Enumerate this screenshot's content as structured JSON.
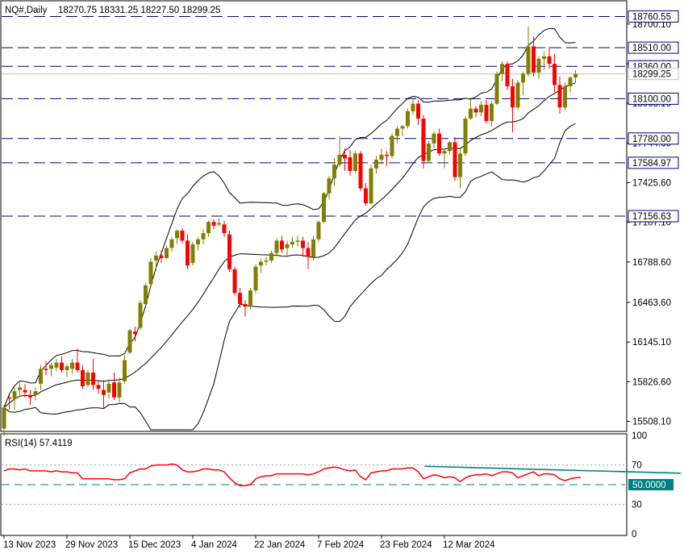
{
  "header": {
    "symbol": "NQ#,Daily",
    "ohlc": "18270.75 18331.25 18227.50 18299.25"
  },
  "rsi_header": {
    "label": "RSI(14) 57.4119"
  },
  "colors": {
    "bull": "#808000",
    "bear": "#ff0000",
    "hline": "#000080",
    "rsi": "#ff0000",
    "trend": "#008080",
    "bid": "#c0c0c0"
  },
  "chart_data": [
    {
      "type": "candlestick",
      "title": "NQ#,Daily",
      "price_axis_ticks": [
        "18700.10",
        "18381.60",
        "18063.10",
        "17744.60",
        "17425.60",
        "17107.10",
        "16788.60",
        "16463.60",
        "16145.10",
        "15826.60",
        "15508.10"
      ],
      "x_tick_labels": [
        "13 Nov 2023",
        "29 Nov 2023",
        "15 Dec 2023",
        "4 Jan 2024",
        "22 Jan 2024",
        "7 Feb 2024",
        "23 Feb 2024",
        "12 Mar 2024"
      ],
      "horizontal_levels": [
        "18760.55",
        "18510.00",
        "18360.00",
        "18100.00",
        "17780.00",
        "17584.97",
        "17156.63"
      ],
      "current_price": "18299.25",
      "ylim": [
        15440,
        18880
      ],
      "candles": [
        [
          15450,
          15640,
          15390,
          15620
        ],
        [
          15700,
          15720,
          15600,
          15690
        ],
        [
          15690,
          15780,
          15600,
          15750
        ],
        [
          15760,
          15820,
          15710,
          15780
        ],
        [
          15760,
          15810,
          15700,
          15740
        ],
        [
          15720,
          15760,
          15640,
          15700
        ],
        [
          15720,
          15780,
          15680,
          15750
        ],
        [
          15810,
          15960,
          15760,
          15930
        ],
        [
          15930,
          15990,
          15880,
          15920
        ],
        [
          15930,
          15980,
          15870,
          15960
        ],
        [
          15940,
          16010,
          15910,
          15980
        ],
        [
          15980,
          16030,
          15900,
          15920
        ],
        [
          15920,
          15970,
          15860,
          15950
        ],
        [
          15930,
          16010,
          15890,
          15980
        ],
        [
          15980,
          16090,
          15900,
          15920
        ],
        [
          15920,
          15960,
          15770,
          15790
        ],
        [
          15800,
          15920,
          15780,
          15900
        ],
        [
          15900,
          16010,
          15760,
          15800
        ],
        [
          15800,
          15830,
          15730,
          15770
        ],
        [
          15760,
          15840,
          15610,
          15720
        ],
        [
          15740,
          15840,
          15690,
          15810
        ],
        [
          15820,
          15900,
          15680,
          15700
        ],
        [
          15700,
          15860,
          15660,
          15820
        ],
        [
          15830,
          16040,
          15810,
          16000
        ],
        [
          16060,
          16250,
          16050,
          16240
        ],
        [
          16230,
          16270,
          16150,
          16210
        ],
        [
          16260,
          16480,
          16240,
          16460
        ],
        [
          16450,
          16620,
          16440,
          16600
        ],
        [
          16610,
          16820,
          16600,
          16790
        ],
        [
          16800,
          16870,
          16720,
          16840
        ],
        [
          16840,
          16880,
          16780,
          16820
        ],
        [
          16820,
          16920,
          16810,
          16900
        ],
        [
          16900,
          16990,
          16870,
          16970
        ],
        [
          16980,
          17050,
          16930,
          17040
        ],
        [
          17040,
          17060,
          16940,
          16960
        ],
        [
          16960,
          17010,
          16730,
          16760
        ],
        [
          16780,
          16950,
          16760,
          16930
        ],
        [
          16930,
          16990,
          16880,
          16970
        ],
        [
          16970,
          17050,
          16930,
          17020
        ],
        [
          17020,
          17120,
          16990,
          17110
        ],
        [
          17110,
          17130,
          17050,
          17080
        ],
        [
          17090,
          17140,
          17070,
          17100
        ],
        [
          17090,
          17120,
          16990,
          17020
        ],
        [
          17010,
          17040,
          16710,
          16730
        ],
        [
          16730,
          16750,
          16520,
          16540
        ],
        [
          16540,
          16580,
          16420,
          16450
        ],
        [
          16450,
          16480,
          16350,
          16430
        ],
        [
          16440,
          16580,
          16410,
          16560
        ],
        [
          16560,
          16770,
          16540,
          16750
        ],
        [
          16760,
          16810,
          16700,
          16790
        ],
        [
          16790,
          16830,
          16760,
          16800
        ],
        [
          16800,
          16880,
          16780,
          16860
        ],
        [
          16860,
          16980,
          16830,
          16960
        ],
        [
          16960,
          17000,
          16860,
          16890
        ],
        [
          16900,
          16960,
          16840,
          16930
        ],
        [
          16930,
          16990,
          16900,
          16950
        ],
        [
          16950,
          17000,
          16910,
          16960
        ],
        [
          16960,
          16990,
          16830,
          16900
        ],
        [
          16900,
          16950,
          16730,
          16830
        ],
        [
          16830,
          17000,
          16800,
          16970
        ],
        [
          16970,
          17120,
          16950,
          17110
        ],
        [
          17110,
          17350,
          17100,
          17340
        ],
        [
          17340,
          17480,
          17290,
          17460
        ],
        [
          17460,
          17620,
          17400,
          17570
        ],
        [
          17570,
          17800,
          17550,
          17650
        ],
        [
          17650,
          17700,
          17520,
          17620
        ],
        [
          17630,
          17690,
          17480,
          17520
        ],
        [
          17520,
          17680,
          17500,
          17660
        ],
        [
          17660,
          17680,
          17360,
          17380
        ],
        [
          17380,
          17420,
          17240,
          17260
        ],
        [
          17260,
          17570,
          17250,
          17540
        ],
        [
          17540,
          17640,
          17500,
          17610
        ],
        [
          17610,
          17700,
          17570,
          17650
        ],
        [
          17650,
          17680,
          17560,
          17640
        ],
        [
          17640,
          17820,
          17620,
          17800
        ],
        [
          17800,
          17880,
          17740,
          17860
        ],
        [
          17860,
          17890,
          17800,
          17880
        ],
        [
          17880,
          18020,
          17860,
          18000
        ],
        [
          18000,
          18100,
          17970,
          18060
        ],
        [
          18060,
          18090,
          17890,
          17940
        ],
        [
          17940,
          17970,
          17540,
          17600
        ],
        [
          17600,
          17760,
          17580,
          17740
        ],
        [
          17740,
          17840,
          17700,
          17820
        ],
        [
          17820,
          17860,
          17640,
          17660
        ],
        [
          17660,
          17700,
          17540,
          17680
        ],
        [
          17680,
          17760,
          17650,
          17750
        ],
        [
          17750,
          17790,
          17440,
          17470
        ],
        [
          17470,
          17700,
          17380,
          17660
        ],
        [
          17660,
          17960,
          17640,
          17940
        ],
        [
          17940,
          18110,
          17930,
          18020
        ],
        [
          18020,
          18040,
          17950,
          17990
        ],
        [
          17990,
          18080,
          17960,
          18050
        ],
        [
          18050,
          18090,
          17900,
          17920
        ],
        [
          17920,
          18080,
          17880,
          18060
        ],
        [
          18060,
          18320,
          18050,
          18300
        ],
        [
          18300,
          18400,
          18240,
          18380
        ],
        [
          18380,
          18400,
          18170,
          18200
        ],
        [
          18200,
          18260,
          17830,
          18030
        ],
        [
          18030,
          18250,
          18010,
          18230
        ],
        [
          18230,
          18320,
          18130,
          18300
        ],
        [
          18300,
          18680,
          18280,
          18520
        ],
        [
          18520,
          18600,
          18280,
          18310
        ],
        [
          18310,
          18440,
          18260,
          18420
        ],
        [
          18420,
          18480,
          18330,
          18440
        ],
        [
          18440,
          18520,
          18340,
          18380
        ],
        [
          18380,
          18460,
          18150,
          18210
        ],
        [
          18210,
          18280,
          17980,
          18030
        ],
        [
          18030,
          18230,
          18010,
          18200
        ],
        [
          18200,
          18280,
          18150,
          18270
        ],
        [
          18270,
          18331.25,
          18227.5,
          18299.25
        ]
      ]
    },
    {
      "type": "line",
      "title": "RSI(14) 57.4119",
      "rsi_axis_ticks": [
        "100",
        "70",
        "50.0000",
        "30",
        "0"
      ],
      "ylim": [
        0,
        100
      ],
      "levels": [
        70,
        50,
        30
      ],
      "series": [
        {
          "values": [
            64,
            66,
            66,
            65,
            66,
            64,
            64,
            64,
            64,
            63,
            64,
            63,
            63,
            62,
            62,
            56,
            56,
            56,
            56,
            56,
            56,
            55,
            55,
            56,
            62,
            64,
            66,
            66,
            69,
            70,
            70,
            70,
            71,
            70,
            65,
            63,
            63,
            64,
            66,
            66,
            65,
            65,
            63,
            57,
            52,
            49,
            49,
            50,
            56,
            58,
            59,
            59,
            61,
            61,
            61,
            61,
            61,
            61,
            60,
            61,
            63,
            66,
            67,
            68,
            67,
            65,
            64,
            65,
            58,
            55,
            62,
            63,
            64,
            64,
            66,
            66,
            66,
            67,
            67,
            63,
            56,
            58,
            60,
            59,
            57,
            58,
            57,
            53,
            57,
            59,
            60,
            60,
            61,
            59,
            61,
            63,
            63,
            62,
            57,
            59,
            61,
            63,
            59,
            61,
            61,
            60,
            56,
            54,
            56,
            57,
            57.41
          ]
        },
        {
          "values": [
            [
              79,
              67
            ],
            [
              130,
              60
            ]
          ]
        }
      ]
    }
  ]
}
